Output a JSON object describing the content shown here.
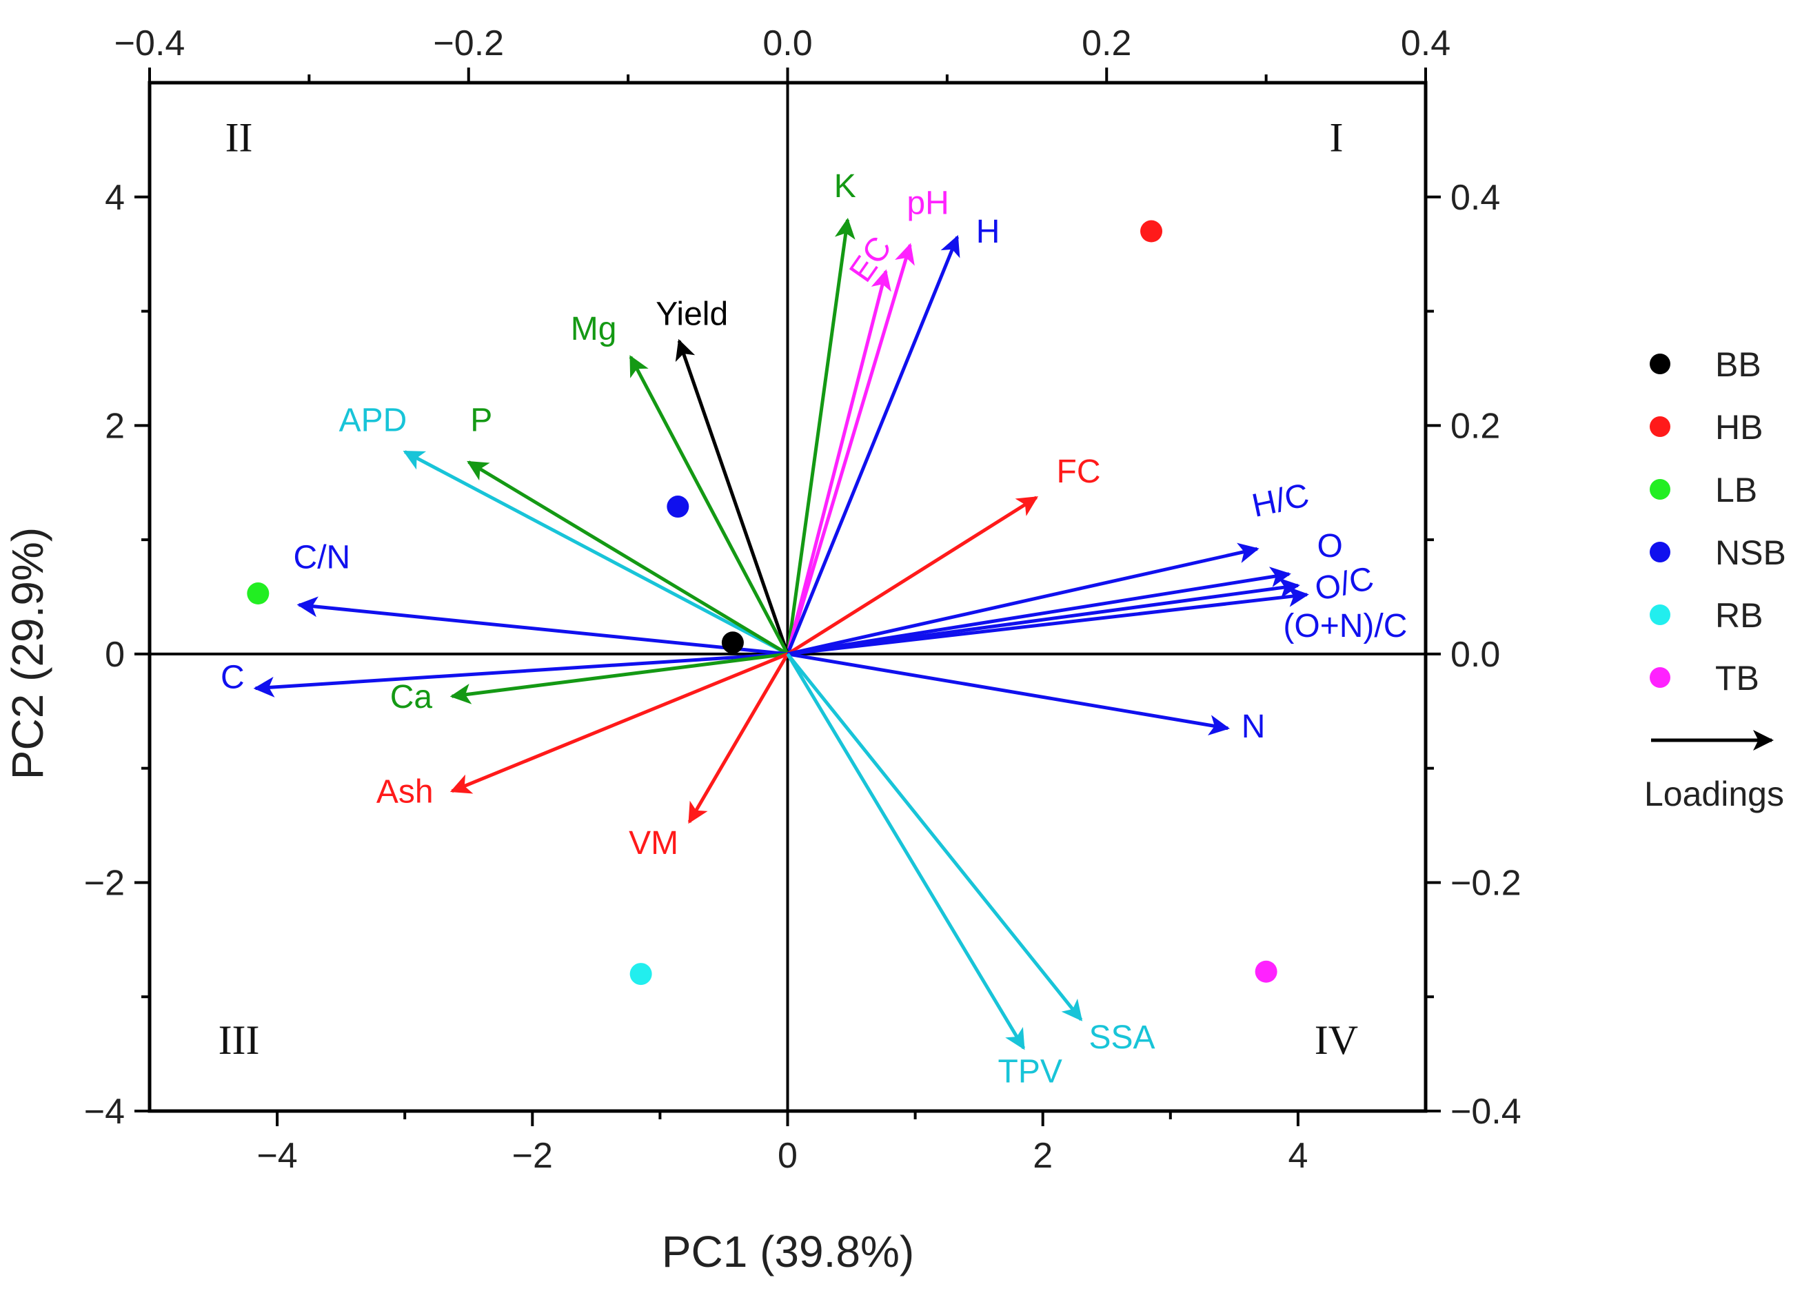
{
  "chart_data": {
    "type": "scatter",
    "subtype": "pca-biplot",
    "title": "",
    "xlabel": "PC1 (39.8%)",
    "ylabel": "PC2 (29.9%)",
    "xlim": [
      -5,
      5
    ],
    "ylim": [
      -4,
      5
    ],
    "x_ticks": [
      "−4",
      "−2",
      "0",
      "2",
      "4"
    ],
    "y_ticks": [
      "−4",
      "−2",
      "0",
      "2",
      "4"
    ],
    "loadings_xlim": [
      -0.4,
      0.4
    ],
    "loadings_ylim": [
      -0.4,
      0.5
    ],
    "top_ticks": [
      "−0.4",
      "−0.2",
      "0.0",
      "0.2",
      "0.4"
    ],
    "right_ticks": [
      "−0.4",
      "−0.2",
      "0.0",
      "0.2",
      "0.4"
    ],
    "grid": false,
    "legend_position": "right",
    "quadrants": [
      {
        "label": "I",
        "x": 4.3,
        "y": 4.4
      },
      {
        "label": "II",
        "x": -4.3,
        "y": 4.4
      },
      {
        "label": "III",
        "x": -4.3,
        "y": -3.5
      },
      {
        "label": "IV",
        "x": 4.3,
        "y": -3.5
      }
    ],
    "series": [
      {
        "name": "BB",
        "color": "#000000",
        "x": -0.43,
        "y": 0.1
      },
      {
        "name": "HB",
        "color": "#ff1a1a",
        "x": 2.85,
        "y": 3.7
      },
      {
        "name": "LB",
        "color": "#22ee22",
        "x": -4.15,
        "y": 0.53
      },
      {
        "name": "NSB",
        "color": "#1010ee",
        "x": -0.86,
        "y": 1.29
      },
      {
        "name": "RB",
        "color": "#22eeee",
        "x": -1.15,
        "y": -2.8
      },
      {
        "name": "TB",
        "color": "#ff22ff",
        "x": 3.75,
        "y": -2.78
      }
    ],
    "loadings_label": "Loadings",
    "loadings": [
      {
        "name": "K",
        "color": "#149914",
        "x": 0.47,
        "y": 3.8,
        "lx": 0.45,
        "ly": 4.0
      },
      {
        "name": "EC",
        "color": "#ff22ff",
        "x": 0.77,
        "y": 3.35,
        "lx": 0.72,
        "ly": 3.4,
        "rotate": -55
      },
      {
        "name": "pH",
        "color": "#ff22ff",
        "x": 0.96,
        "y": 3.58,
        "lx": 1.1,
        "ly": 3.85
      },
      {
        "name": "H",
        "color": "#1010ee",
        "x": 1.33,
        "y": 3.65,
        "lx": 1.57,
        "ly": 3.6
      },
      {
        "name": "Yield",
        "color": "#000000",
        "x": -0.85,
        "y": 2.74,
        "lx": -0.75,
        "ly": 2.88
      },
      {
        "name": "Mg",
        "color": "#149914",
        "x": -1.23,
        "y": 2.6,
        "lx": -1.52,
        "ly": 2.75
      },
      {
        "name": "APD",
        "color": "#18c4d8",
        "x": -3.0,
        "y": 1.77,
        "lx": -3.25,
        "ly": 1.95
      },
      {
        "name": "P",
        "color": "#149914",
        "x": -2.5,
        "y": 1.68,
        "lx": -2.4,
        "ly": 1.95
      },
      {
        "name": "C/N",
        "color": "#1010ee",
        "x": -3.83,
        "y": 0.43,
        "lx": -3.65,
        "ly": 0.75
      },
      {
        "name": "C",
        "color": "#1010ee",
        "x": -4.17,
        "y": -0.3,
        "lx": -4.35,
        "ly": -0.3
      },
      {
        "name": "Ca",
        "color": "#149914",
        "x": -2.63,
        "y": -0.37,
        "lx": -2.95,
        "ly": -0.47
      },
      {
        "name": "Ash",
        "color": "#ff1a1a",
        "x": -2.63,
        "y": -1.2,
        "lx": -3.0,
        "ly": -1.3
      },
      {
        "name": "VM",
        "color": "#ff1a1a",
        "x": -0.77,
        "y": -1.47,
        "lx": -1.05,
        "ly": -1.75
      },
      {
        "name": "FC",
        "color": "#ff1a1a",
        "x": 1.95,
        "y": 1.37,
        "lx": 2.28,
        "ly": 1.5
      },
      {
        "name": "H/C",
        "color": "#1010ee",
        "x": 3.68,
        "y": 0.92,
        "lx": 3.88,
        "ly": 1.25,
        "rotate": -12
      },
      {
        "name": "O",
        "color": "#1010ee",
        "x": 3.93,
        "y": 0.7,
        "lx": 4.25,
        "ly": 0.85
      },
      {
        "name": "O/C",
        "color": "#1010ee",
        "x": 4.0,
        "y": 0.6,
        "lx": 4.38,
        "ly": 0.52,
        "rotate": -12
      },
      {
        "name": "(O+N)/C",
        "color": "#1010ee",
        "x": 4.07,
        "y": 0.52,
        "lx": 4.37,
        "ly": 0.15
      },
      {
        "name": "N",
        "color": "#1010ee",
        "x": 3.45,
        "y": -0.65,
        "lx": 3.65,
        "ly": -0.73
      },
      {
        "name": "TPV",
        "color": "#18c4d8",
        "x": 1.85,
        "y": -3.45,
        "lx": 1.9,
        "ly": -3.75
      },
      {
        "name": "SSA",
        "color": "#18c4d8",
        "x": 2.3,
        "y": -3.2,
        "lx": 2.62,
        "ly": -3.45
      }
    ]
  }
}
